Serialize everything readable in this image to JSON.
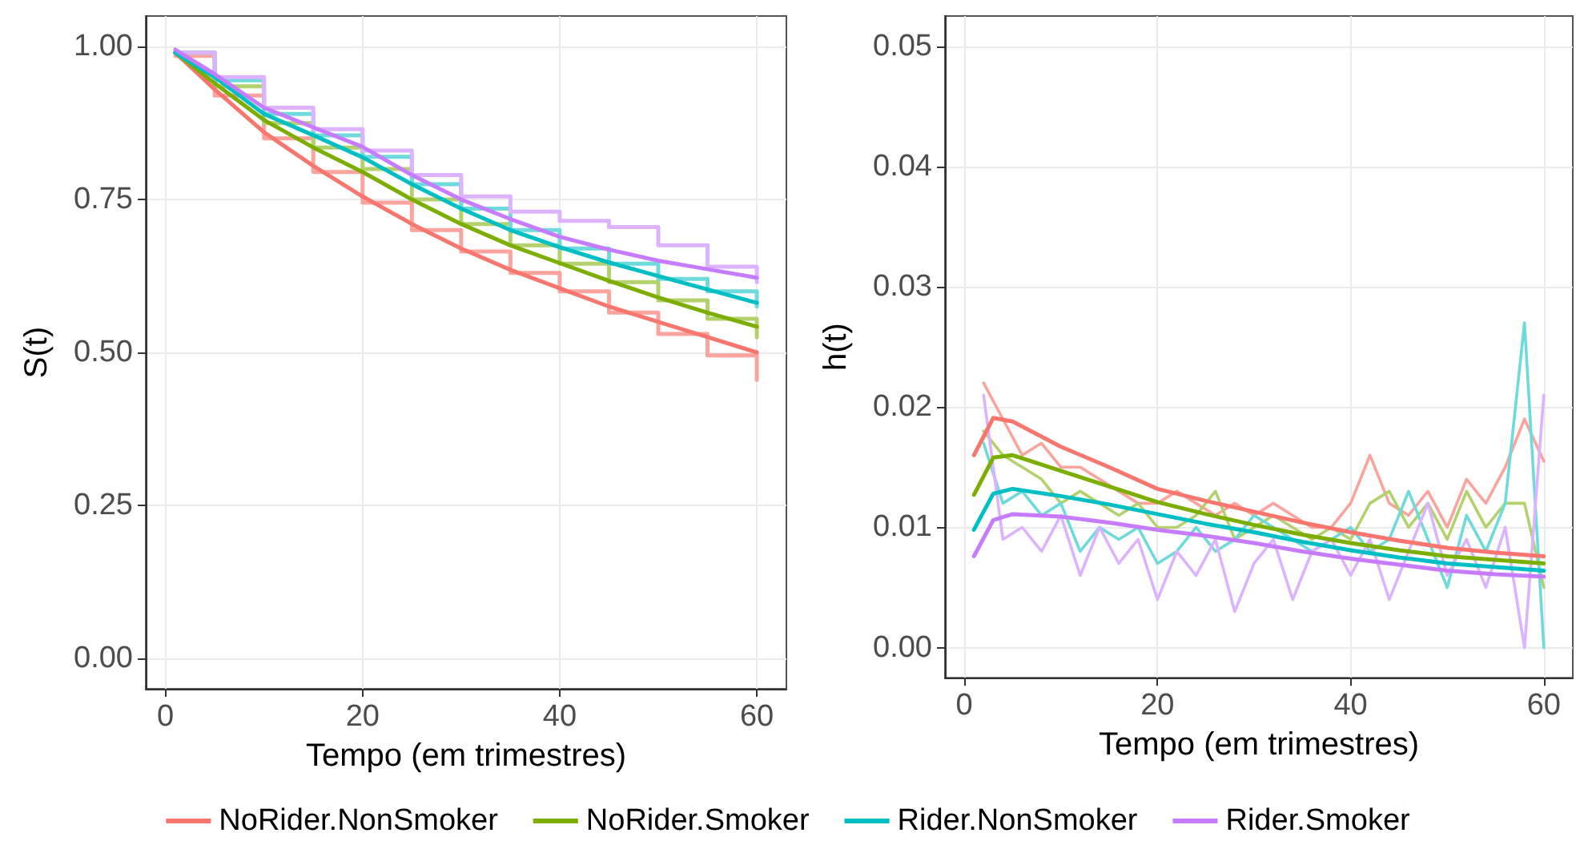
{
  "chart_data": [
    {
      "type": "line",
      "xlabel": "Tempo (em trimestres)",
      "ylabel": "S(t)",
      "xlim": [
        -2,
        63
      ],
      "ylim": [
        -0.05,
        1.05
      ],
      "xticks": [
        0,
        20,
        40,
        60
      ],
      "yticks": [
        {
          "value": 0,
          "label": "0.00"
        },
        {
          "value": 0.25,
          "label": "0.25"
        },
        {
          "value": 0.5,
          "label": "0.50"
        },
        {
          "value": 0.75,
          "label": "0.75"
        },
        {
          "value": 1,
          "label": "1.00"
        }
      ],
      "grid": true,
      "legend": "bottom",
      "marker": "none",
      "line_style": "solid",
      "series": [
        {
          "type": "step",
          "color": "#fba39d",
          "x": [
            1,
            5,
            10,
            15,
            20,
            25,
            30,
            35,
            40,
            45,
            50,
            55,
            60
          ],
          "values": [
            0.985,
            0.92,
            0.85,
            0.795,
            0.745,
            0.7,
            0.665,
            0.63,
            0.6,
            0.565,
            0.53,
            0.495,
            0.455
          ]
        },
        {
          "type": "step",
          "color": "#b3d26e",
          "x": [
            1,
            5,
            10,
            15,
            20,
            25,
            30,
            35,
            40,
            45,
            50,
            55,
            60
          ],
          "values": [
            0.99,
            0.935,
            0.875,
            0.835,
            0.8,
            0.75,
            0.71,
            0.675,
            0.645,
            0.615,
            0.585,
            0.555,
            0.525
          ]
        },
        {
          "type": "step",
          "color": "#6fdadc",
          "x": [
            1,
            5,
            10,
            15,
            20,
            25,
            30,
            35,
            40,
            45,
            50,
            55,
            60
          ],
          "values": [
            0.99,
            0.945,
            0.89,
            0.855,
            0.82,
            0.775,
            0.735,
            0.7,
            0.67,
            0.645,
            0.62,
            0.6,
            0.575
          ]
        },
        {
          "type": "step",
          "color": "#ddb3ff",
          "x": [
            1,
            5,
            10,
            15,
            20,
            25,
            30,
            35,
            40,
            45,
            50,
            55,
            60
          ],
          "values": [
            0.99,
            0.95,
            0.9,
            0.865,
            0.83,
            0.79,
            0.755,
            0.73,
            0.715,
            0.705,
            0.675,
            0.64,
            0.615
          ]
        },
        {
          "name": "NoRider.NonSmoker",
          "color": "#f8766d",
          "x": [
            1,
            5,
            10,
            15,
            20,
            25,
            30,
            35,
            40,
            45,
            50,
            55,
            60
          ],
          "values": [
            0.99,
            0.93,
            0.86,
            0.805,
            0.755,
            0.71,
            0.67,
            0.635,
            0.605,
            0.575,
            0.55,
            0.525,
            0.5
          ]
        },
        {
          "name": "NoRider.Smoker",
          "color": "#7cae00",
          "x": [
            1,
            5,
            10,
            15,
            20,
            25,
            30,
            35,
            40,
            45,
            50,
            55,
            60
          ],
          "values": [
            0.99,
            0.94,
            0.88,
            0.835,
            0.795,
            0.75,
            0.71,
            0.675,
            0.646,
            0.617,
            0.59,
            0.565,
            0.542
          ]
        },
        {
          "name": "Rider.NonSmoker",
          "color": "#00bfc4",
          "x": [
            1,
            5,
            10,
            15,
            20,
            25,
            30,
            35,
            40,
            45,
            50,
            55,
            60
          ],
          "values": [
            0.99,
            0.95,
            0.89,
            0.855,
            0.819,
            0.775,
            0.735,
            0.7,
            0.672,
            0.647,
            0.625,
            0.603,
            0.581
          ]
        },
        {
          "name": "Rider.Smoker",
          "color": "#c77cff",
          "x": [
            1,
            5,
            10,
            15,
            20,
            25,
            30,
            35,
            40,
            45,
            50,
            55,
            60
          ],
          "values": [
            0.995,
            0.955,
            0.9,
            0.868,
            0.836,
            0.79,
            0.75,
            0.718,
            0.689,
            0.668,
            0.65,
            0.636,
            0.622
          ]
        }
      ]
    },
    {
      "type": "line",
      "xlabel": "Tempo (em trimestres)",
      "ylabel": "h(t)",
      "xlim": [
        -2,
        63
      ],
      "ylim": [
        -0.0025,
        0.0525
      ],
      "xticks": [
        0,
        20,
        40,
        60
      ],
      "yticks": [
        {
          "value": 0,
          "label": "0.00"
        },
        {
          "value": 0.01,
          "label": "0.01"
        },
        {
          "value": 0.02,
          "label": "0.02"
        },
        {
          "value": 0.03,
          "label": "0.03"
        },
        {
          "value": 0.04,
          "label": "0.04"
        },
        {
          "value": 0.05,
          "label": "0.05"
        }
      ],
      "grid": true,
      "marker": "none",
      "line_style": "solid",
      "series": [
        {
          "color": "#fba39d",
          "x": [
            2,
            4,
            6,
            8,
            10,
            12,
            14,
            16,
            18,
            20,
            22,
            24,
            26,
            28,
            30,
            32,
            34,
            36,
            38,
            40,
            42,
            44,
            46,
            48,
            50,
            52,
            54,
            56,
            58,
            60
          ],
          "values": [
            0.022,
            0.019,
            0.016,
            0.017,
            0.015,
            0.015,
            0.014,
            0.013,
            0.012,
            0.012,
            0.013,
            0.012,
            0.011,
            0.012,
            0.011,
            0.012,
            0.011,
            0.01,
            0.01,
            0.012,
            0.016,
            0.012,
            0.011,
            0.013,
            0.01,
            0.014,
            0.012,
            0.015,
            0.019,
            0.0155
          ]
        },
        {
          "color": "#b3d26e",
          "x": [
            2,
            4,
            6,
            8,
            10,
            12,
            14,
            16,
            18,
            20,
            22,
            24,
            26,
            28,
            30,
            32,
            34,
            36,
            38,
            40,
            42,
            44,
            46,
            48,
            50,
            52,
            54,
            56,
            58,
            60
          ],
          "values": [
            0.018,
            0.016,
            0.015,
            0.014,
            0.012,
            0.013,
            0.012,
            0.011,
            0.012,
            0.01,
            0.01,
            0.011,
            0.013,
            0.009,
            0.01,
            0.011,
            0.01,
            0.009,
            0.01,
            0.009,
            0.012,
            0.013,
            0.01,
            0.012,
            0.009,
            0.013,
            0.01,
            0.012,
            0.012,
            0.005
          ]
        },
        {
          "color": "#6fdadc",
          "x": [
            2,
            4,
            6,
            8,
            10,
            12,
            14,
            16,
            18,
            20,
            22,
            24,
            26,
            28,
            30,
            32,
            34,
            36,
            38,
            40,
            42,
            44,
            46,
            48,
            50,
            52,
            54,
            56,
            58,
            60
          ],
          "values": [
            0.017,
            0.012,
            0.013,
            0.011,
            0.012,
            0.008,
            0.01,
            0.009,
            0.01,
            0.007,
            0.008,
            0.01,
            0.008,
            0.009,
            0.011,
            0.01,
            0.009,
            0.008,
            0.009,
            0.01,
            0.008,
            0.009,
            0.013,
            0.009,
            0.005,
            0.011,
            0.008,
            0.012,
            0.027,
            0
          ]
        },
        {
          "color": "#ddb3ff",
          "x": [
            2,
            4,
            6,
            8,
            10,
            12,
            14,
            16,
            18,
            20,
            22,
            24,
            26,
            28,
            30,
            32,
            34,
            36,
            38,
            40,
            42,
            44,
            46,
            48,
            50,
            52,
            54,
            56,
            58,
            60
          ],
          "values": [
            0.021,
            0.009,
            0.01,
            0.008,
            0.011,
            0.006,
            0.01,
            0.007,
            0.009,
            0.004,
            0.008,
            0.006,
            0.009,
            0.003,
            0.007,
            0.009,
            0.004,
            0.008,
            0.009,
            0.006,
            0.009,
            0.004,
            0.008,
            0.012,
            0.006,
            0.009,
            0.005,
            0.01,
            0,
            0.021
          ]
        },
        {
          "color": "#f8766d",
          "x": [
            1,
            3,
            5,
            10,
            15,
            20,
            25,
            30,
            35,
            40,
            45,
            50,
            55,
            60
          ],
          "values": [
            0.016,
            0.0191,
            0.0188,
            0.0167,
            0.015,
            0.0132,
            0.0122,
            0.0113,
            0.0104,
            0.0096,
            0.0089,
            0.0083,
            0.0079,
            0.0076
          ]
        },
        {
          "color": "#7cae00",
          "x": [
            1,
            3,
            5,
            10,
            15,
            20,
            25,
            30,
            35,
            40,
            45,
            50,
            55,
            60
          ],
          "values": [
            0.0127,
            0.0158,
            0.016,
            0.0147,
            0.0134,
            0.0121,
            0.0111,
            0.0102,
            0.0094,
            0.0087,
            0.0081,
            0.0076,
            0.0073,
            0.007
          ]
        },
        {
          "color": "#00bfc4",
          "x": [
            1,
            3,
            5,
            10,
            15,
            20,
            25,
            30,
            35,
            40,
            45,
            50,
            55,
            60
          ],
          "values": [
            0.0098,
            0.0128,
            0.0132,
            0.0126,
            0.0119,
            0.0111,
            0.0103,
            0.0096,
            0.0088,
            0.0081,
            0.0075,
            0.007,
            0.0067,
            0.0064
          ]
        },
        {
          "color": "#c77cff",
          "x": [
            1,
            3,
            5,
            10,
            15,
            20,
            25,
            30,
            35,
            40,
            45,
            50,
            55,
            60
          ],
          "values": [
            0.0076,
            0.0106,
            0.0111,
            0.0109,
            0.0104,
            0.0098,
            0.0093,
            0.0087,
            0.008,
            0.0074,
            0.0069,
            0.0064,
            0.0061,
            0.0059
          ]
        }
      ]
    }
  ]
}
